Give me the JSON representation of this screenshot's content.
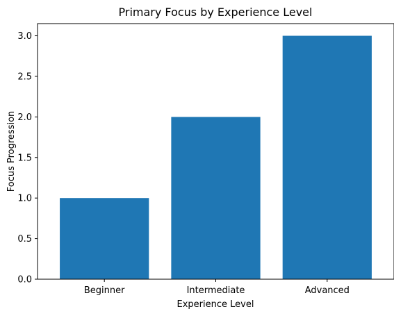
{
  "chart_data": {
    "type": "bar",
    "title": "Primary Focus by Experience Level",
    "xlabel": "Experience Level",
    "ylabel": "Focus Progression",
    "categories": [
      "Beginner",
      "Intermediate",
      "Advanced"
    ],
    "values": [
      1,
      2,
      3
    ],
    "ylim": [
      0,
      3.15
    ],
    "yticks": [
      "0.0",
      "0.5",
      "1.0",
      "1.5",
      "2.0",
      "2.5",
      "3.0"
    ],
    "grid": false,
    "legend": "none",
    "bar_color": "#1f77b4"
  }
}
